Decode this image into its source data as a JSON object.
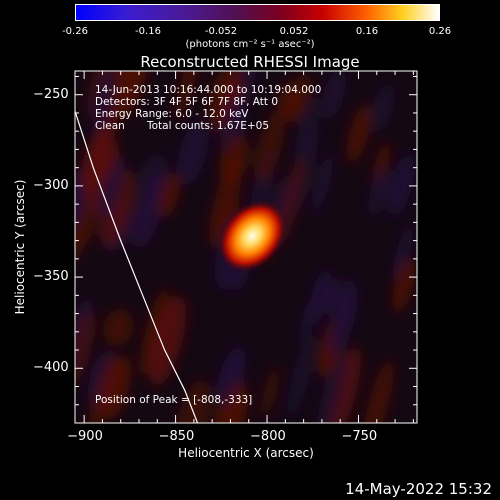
{
  "colorbar": {
    "ticks": [
      "-0.26",
      "-0.16",
      "-0.052",
      "0.052",
      "0.16",
      "0.26"
    ],
    "units": "(photons cm⁻² s⁻¹ asec⁻²)"
  },
  "chart_data": {
    "type": "heatmap",
    "title": "Reconstructed RHESSI Image",
    "xlabel": "Heliocentric X (arcsec)",
    "ylabel": "Heliocentric Y (arcsec)",
    "xlim": [
      -905,
      -718
    ],
    "ylim": [
      -430,
      -237
    ],
    "xticks": [
      "−900",
      "−850",
      "−800",
      "−750"
    ],
    "xtick_values": [
      -900,
      -850,
      -800,
      -750
    ],
    "yticks": [
      "−250",
      "−300",
      "−350",
      "−400"
    ],
    "ytick_values": [
      -250,
      -300,
      -350,
      -400
    ],
    "colorbar_range": [
      -0.26,
      0.26
    ],
    "peak_position": [
      -808,
      -333
    ],
    "limb_curve": [
      [
        -905,
        -259
      ],
      [
        -895,
        -290
      ],
      [
        -880,
        -330
      ],
      [
        -868,
        -360
      ],
      [
        -856,
        -390
      ],
      [
        -845,
        -412
      ],
      [
        -838,
        -430
      ]
    ],
    "annotations": {
      "time_range": "14-Jun-2013 10:16:44.000 to 10:19:04.000",
      "detectors": "Detectors: 3F 4F 5F 6F 7F 8F, Att 0",
      "energy_range": "Energy Range: 6.0 - 12.0 keV",
      "clean_label": "Clean",
      "total_counts": "Total counts: 1.67E+05",
      "peak_text": "Position of Peak = [-808,-333]"
    }
  },
  "timestamp": "14-May-2022 15:32"
}
